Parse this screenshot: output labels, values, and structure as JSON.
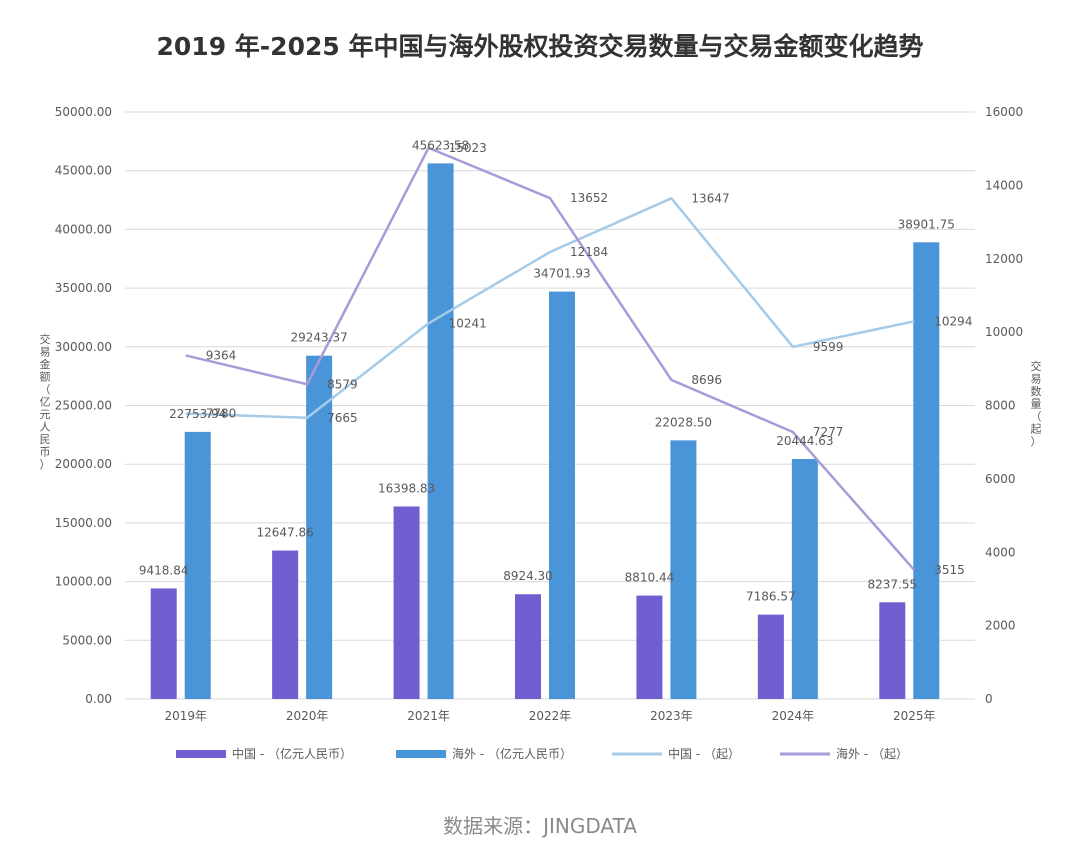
{
  "chart_data": {
    "type": "bar",
    "title": "2019 年-2025 年中国与海外股权投资交易数量与交易金额变化趋势",
    "categories": [
      "2019年",
      "2020年",
      "2021年",
      "2022年",
      "2023年",
      "2024年",
      "2025年"
    ],
    "series": [
      {
        "name": "中国 - （亿元人民币）",
        "type": "bar",
        "axis": "left",
        "color": "#6f5fd1",
        "values": [
          9418.84,
          12647.86,
          16398.83,
          8924.3,
          8810.44,
          7186.57,
          8237.55
        ],
        "labels": [
          "9418.84",
          "12647.86",
          "16398.83",
          "8924.30",
          "8810.44",
          "7186.57",
          "8237.55"
        ]
      },
      {
        "name": "海外 - （亿元人民币）",
        "type": "bar",
        "axis": "left",
        "color": "#4a94d8",
        "values": [
          22753.94,
          29243.37,
          45623.58,
          34701.93,
          22028.5,
          20444.63,
          38901.75
        ],
        "labels": [
          "22753.94",
          "29243.37",
          "45623.58",
          "34701.93",
          "22028.50",
          "20444.63",
          "38901.75"
        ]
      },
      {
        "name": "中国 - （起）",
        "type": "line",
        "axis": "right",
        "color": "#a4cbe9",
        "values": [
          7780,
          7665,
          10241,
          12184,
          13647,
          9599,
          10294
        ],
        "labels": [
          "7780",
          "7665",
          "10241",
          "12184",
          "13647",
          "9599",
          "10294"
        ]
      },
      {
        "name": "海外 - （起）",
        "type": "line",
        "axis": "right",
        "color": "#a99ad8",
        "values": [
          9364,
          8579,
          15023,
          13652,
          8696,
          7277,
          3515
        ],
        "labels": [
          "9364",
          "8579",
          "15023",
          "13652",
          "8696",
          "7277",
          "3515"
        ]
      }
    ],
    "y_left": {
      "label": "交易金额（亿元人民币）",
      "ylim": [
        0,
        50000
      ],
      "ticks": [
        "0.00",
        "5000.00",
        "10000.00",
        "15000.00",
        "20000.00",
        "25000.00",
        "30000.00",
        "35000.00",
        "40000.00",
        "45000.00",
        "50000.00"
      ]
    },
    "y_right": {
      "label": "交易数量（起）",
      "ylim": [
        0,
        16000
      ],
      "ticks": [
        "0",
        "2000",
        "4000",
        "6000",
        "8000",
        "10000",
        "12000",
        "14000",
        "16000"
      ]
    },
    "grid": true,
    "legend_position": "bottom",
    "source": "数据来源：JINGDATA"
  }
}
